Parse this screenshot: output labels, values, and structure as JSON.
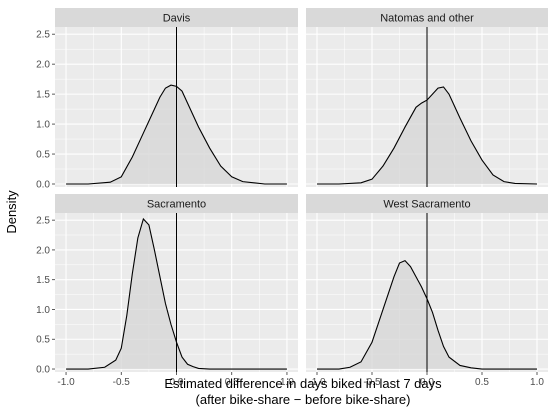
{
  "chart_data": {
    "type": "area",
    "facet_layout": "2x2",
    "xlabel": [
      "Estimated difference in days biked in last 7 days",
      "(after bike-share − before bike-share)"
    ],
    "ylabel": "Density",
    "xlim": [
      -1.1,
      1.1
    ],
    "ylim": [
      -0.05,
      2.62
    ],
    "x_ticks": [
      -1.0,
      -0.5,
      0.0,
      0.5,
      1.0
    ],
    "x_tick_labels": [
      "-1.0",
      "-0.5",
      "0.0",
      "0.5",
      "1.0"
    ],
    "y_ticks": [
      0.0,
      0.5,
      1.0,
      1.5,
      2.0,
      2.5
    ],
    "y_tick_labels": [
      "0.0",
      "0.5",
      "1.0",
      "1.5",
      "2.0",
      "2.5"
    ],
    "reference_line_x": 0,
    "grid": true,
    "colors": {
      "panel_bg": "#ebebeb",
      "strip_bg": "#d9d9d9",
      "grid": "#ffffff",
      "fill": "#d6d6d6",
      "line": "#000000"
    },
    "panels": [
      {
        "name": "Davis",
        "x": [
          -1.0,
          -0.8,
          -0.6,
          -0.5,
          -0.4,
          -0.3,
          -0.2,
          -0.15,
          -0.1,
          -0.05,
          0.0,
          0.05,
          0.1,
          0.15,
          0.2,
          0.3,
          0.4,
          0.5,
          0.6,
          0.8,
          1.0
        ],
        "y": [
          0.0,
          0.0,
          0.03,
          0.12,
          0.45,
          0.85,
          1.25,
          1.45,
          1.6,
          1.65,
          1.63,
          1.55,
          1.35,
          1.15,
          0.95,
          0.6,
          0.3,
          0.12,
          0.04,
          0.0,
          0.0
        ]
      },
      {
        "name": "Natomas and other",
        "x": [
          -1.0,
          -0.8,
          -0.6,
          -0.5,
          -0.4,
          -0.3,
          -0.2,
          -0.1,
          -0.05,
          0.0,
          0.05,
          0.1,
          0.15,
          0.2,
          0.25,
          0.3,
          0.4,
          0.5,
          0.6,
          0.7,
          0.8,
          1.0
        ],
        "y": [
          0.0,
          0.0,
          0.02,
          0.08,
          0.3,
          0.6,
          0.95,
          1.28,
          1.35,
          1.4,
          1.5,
          1.6,
          1.62,
          1.5,
          1.3,
          1.1,
          0.72,
          0.4,
          0.15,
          0.04,
          0.01,
          0.0
        ]
      },
      {
        "name": "Sacramento",
        "x": [
          -1.0,
          -0.8,
          -0.65,
          -0.55,
          -0.5,
          -0.45,
          -0.4,
          -0.35,
          -0.3,
          -0.25,
          -0.2,
          -0.15,
          -0.1,
          -0.05,
          0.0,
          0.05,
          0.1,
          0.15,
          0.2,
          0.3,
          0.5,
          1.0
        ],
        "y": [
          0.0,
          0.0,
          0.03,
          0.15,
          0.35,
          0.9,
          1.6,
          2.2,
          2.52,
          2.42,
          2.0,
          1.55,
          1.1,
          0.75,
          0.45,
          0.2,
          0.08,
          0.04,
          0.01,
          0.0,
          0.0,
          0.0
        ]
      },
      {
        "name": "West Sacramento",
        "x": [
          -1.0,
          -0.8,
          -0.7,
          -0.6,
          -0.5,
          -0.4,
          -0.3,
          -0.25,
          -0.2,
          -0.15,
          -0.1,
          -0.05,
          0.0,
          0.05,
          0.1,
          0.15,
          0.2,
          0.3,
          0.4,
          0.5,
          0.7,
          1.0
        ],
        "y": [
          0.0,
          0.0,
          0.03,
          0.12,
          0.45,
          1.0,
          1.55,
          1.78,
          1.82,
          1.72,
          1.55,
          1.38,
          1.18,
          0.95,
          0.65,
          0.38,
          0.2,
          0.06,
          0.02,
          0.0,
          0.0,
          0.0
        ]
      }
    ]
  }
}
